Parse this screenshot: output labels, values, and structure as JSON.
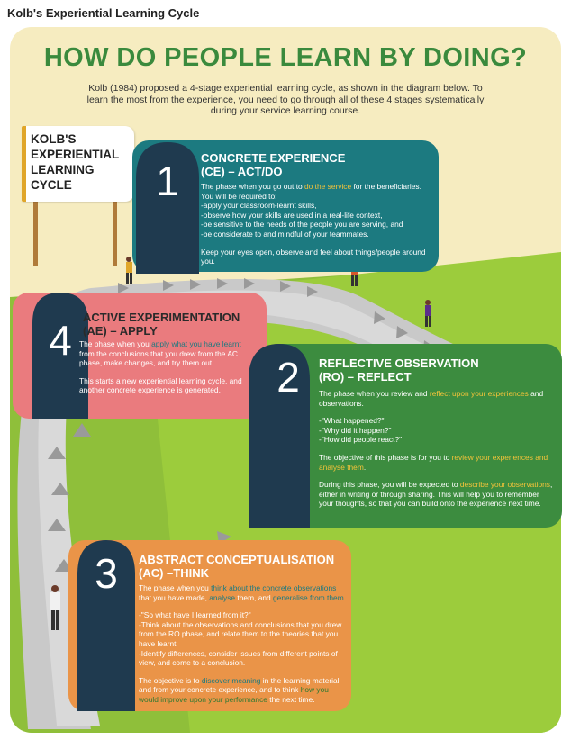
{
  "page_title": "Kolb's Experiential Learning Cycle",
  "headline": "HOW DO PEOPLE LEARN BY DOING?",
  "intro": "Kolb (1984) proposed a 4-stage experiential learning cycle, as shown in the diagram below. To learn the most from the experience, you need to go through all of these 4 stages systematically during your service learning course.",
  "sign": [
    "KOLB'S",
    "EXPERIENTIAL",
    "LEARNING",
    "CYCLE"
  ],
  "colors": {
    "teal": "#1c7a80",
    "pink": "#ea7b7e",
    "green": "#3c8c3f",
    "orange": "#ea9448",
    "headline_green": "#3a8a3d",
    "highlight": "#f3c33a"
  },
  "stages": {
    "s1": {
      "number": "1",
      "title1": "CONCRETE EXPERIENCE",
      "title2": "(CE) – ACT/DO",
      "p1a": "The phase when you go out to ",
      "p1h": "do the service",
      "p1b": " for the beneficiaries.",
      "p2": "You will be required to:",
      "bullets": [
        "-apply your classroom-learnt skills,",
        "-observe how your skills are used in a real-life context,",
        "-be sensitive to the needs of the people you are serving, and",
        "-be considerate to and mindful of your teammates."
      ],
      "closing": "Keep your eyes open, observe and feel about things/people around you."
    },
    "s4": {
      "number": "4",
      "title1": "ACTIVE EXPERIMENTATION",
      "title2": "(AE) – APPLY",
      "p1a": "The phase when you ",
      "p1h": "apply what you have learnt",
      "p1b": " from the conclusions that you drew from the AC phase, make changes, and try them out.",
      "p2": "This starts a new experiential learning cycle, and another concrete experience is generated."
    },
    "s2": {
      "number": "2",
      "title1": "REFLECTIVE OBSERVATION",
      "title2": "(RO) – REFLECT",
      "p1a": "The phase when you review and ",
      "p1h": "reflect upon your experiences",
      "p1b": " and observations.",
      "questions": [
        "-\"What happened?\"",
        "-\"Why did it happen?\"",
        "-\"How did people react?\""
      ],
      "p2a": "The objective of this phase is for you to ",
      "p2h": "review your experiences and analyse them",
      "p2b": ".",
      "p3a": "During this phase, you will be expected to ",
      "p3h": "describe your observations",
      "p3b": ", either in writing or through sharing. This will help you to remember your thoughts, so that you can build onto the experience next time."
    },
    "s3": {
      "number": "3",
      "title1": "ABSTRACT CONCEPTUALISATION",
      "title2": "(AC) –THINK",
      "p1a": "The phase when you ",
      "p1h1": "think about the concrete observations",
      "p1b": " that you have made, ",
      "p1h2": "analyse",
      "p1c": " them, and ",
      "p1h3": "generalise from them",
      "p2": "-\"So what have I learned from it?\"",
      "p3": "-Think about the observations and conclusions that you drew from the RO phase, and relate them to the theories that you have learnt.",
      "p4": "-Identify differences, consider issues from different points of view, and come to a conclusion.",
      "p5a": "The objective is to ",
      "p5h1": "discover meaning",
      "p5b": " in the learning material and from your concrete experience, and to think ",
      "p5h2": "how you would improve upon your performance",
      "p5c": " the next time."
    }
  }
}
